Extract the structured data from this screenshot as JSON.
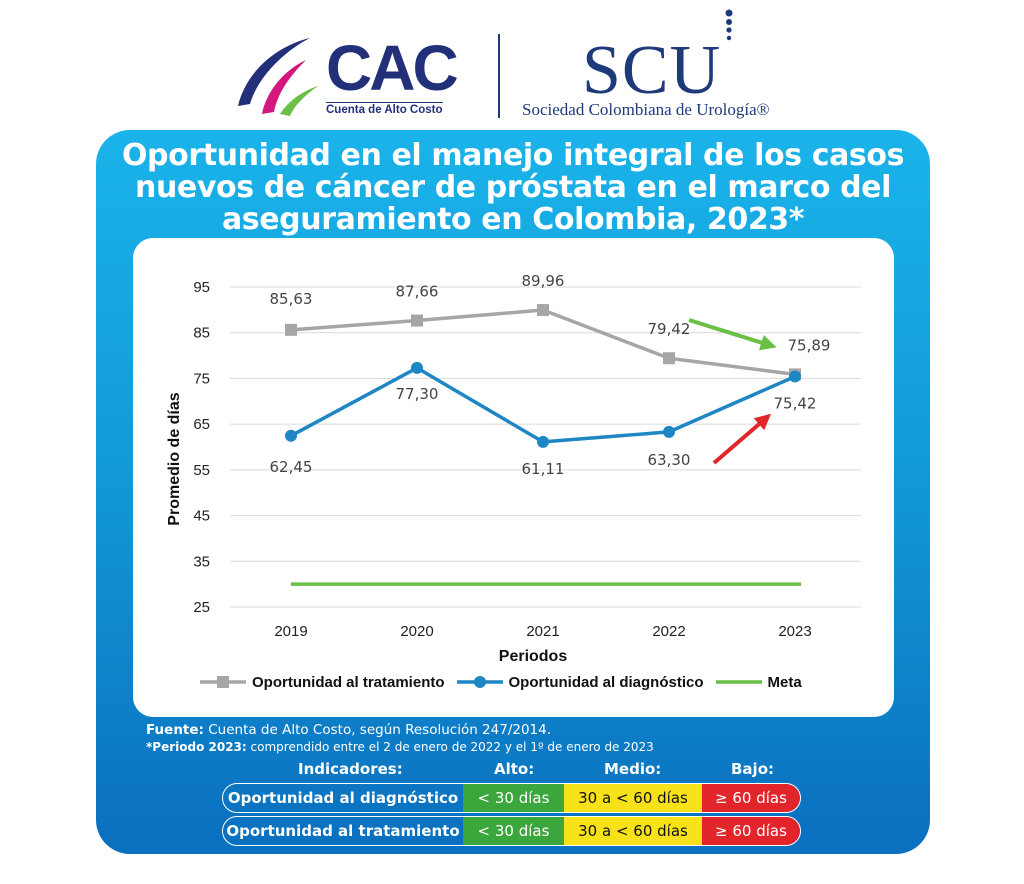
{
  "logos": {
    "cac_text": "CAC",
    "cac_subtitle": "Cuenta de Alto Costo",
    "scu_text": "SCU",
    "scu_subtitle": "Sociedad Colombiana de Urología®"
  },
  "title": "Oportunidad en el manejo integral de los casos nuevos de cáncer de próstata en el marco del aseguramiento en Colombia, 2023*",
  "title_lines": [
    "Oportunidad en el manejo integral de los casos",
    "nuevos de cáncer de próstata en el marco del",
    "aseguramiento en Colombia, 2023*"
  ],
  "chart_data": {
    "type": "line",
    "categories": [
      "2019",
      "2020",
      "2021",
      "2022",
      "2023"
    ],
    "xlabel": "Periodos",
    "ylabel": "Promedio de días",
    "ylim": [
      25,
      95
    ],
    "yticks": [
      95,
      85,
      75,
      65,
      55,
      45,
      35,
      25
    ],
    "grid": true,
    "legend_position": "bottom",
    "series": [
      {
        "name": "Oportunidad al tratamiento",
        "values": [
          85.63,
          87.66,
          89.96,
          79.42,
          75.89
        ],
        "labels": [
          "85,63",
          "87,66",
          "89,96",
          "79,42",
          "75,89"
        ],
        "color": "#a6a6a6",
        "marker": "square"
      },
      {
        "name": "Oportunidad al diagnóstico",
        "values": [
          62.45,
          77.3,
          61.11,
          63.3,
          75.42
        ],
        "labels": [
          "62,45",
          "77,30",
          "61,11",
          "63,30",
          "75,42"
        ],
        "color": "#1e86c4",
        "marker": "circle"
      },
      {
        "name": "Meta",
        "values": [
          30,
          30,
          30,
          30,
          30
        ],
        "color": "#6abf45",
        "marker": "none"
      }
    ],
    "annotations": [
      {
        "type": "arrow",
        "color": "#6abf45",
        "meaning": "decrease in treatment days"
      },
      {
        "type": "arrow",
        "color": "#e2252a",
        "meaning": "increase in diagnosis days"
      }
    ]
  },
  "footnotes": {
    "source_label": "Fuente:",
    "source_text": "Cuenta de Alto Costo, según Resolución 247/2014.",
    "period_label": "*Periodo 2023:",
    "period_text": "comprendido entre el 2 de enero de 2022 y el 1º de enero de 2023"
  },
  "indicators": {
    "header": {
      "name": "Indicadores:",
      "alto": "Alto:",
      "medio": "Medio:",
      "bajo": "Bajo:"
    },
    "rows": [
      {
        "name": "Oportunidad al diagnóstico",
        "alto": "< 30 días",
        "medio": "30 a < 60 días",
        "bajo": "≥ 60 días"
      },
      {
        "name": "Oportunidad al tratamiento",
        "alto": "< 30 días",
        "medio": "30 a < 60 días",
        "bajo": "≥ 60 días"
      }
    ],
    "colors": {
      "alto": "#3ba63c",
      "medio": "#f7e21a",
      "bajo": "#e2252a"
    }
  }
}
